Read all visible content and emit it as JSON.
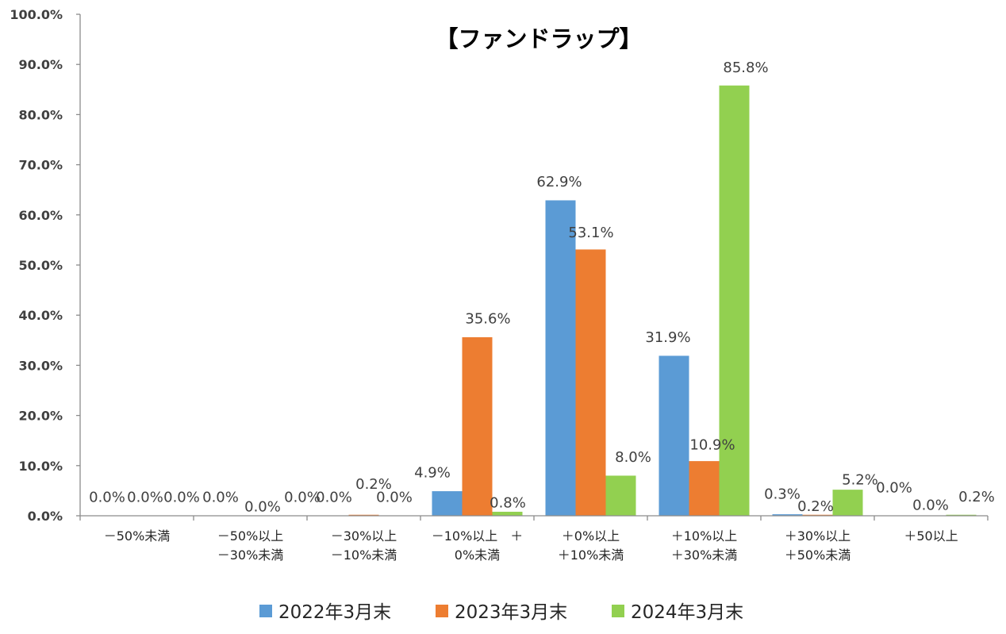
{
  "chart_data": {
    "type": "bar",
    "title": "【ファンドラップ】",
    "xlabel": "",
    "ylabel": "",
    "ylim": [
      0,
      100
    ],
    "grid": false,
    "legend": "bottom",
    "ytick_values": [
      0,
      10,
      20,
      30,
      40,
      50,
      60,
      70,
      80,
      90,
      100
    ],
    "ytick_labels": [
      "0.0%",
      "10.0%",
      "20.0%",
      "30.0%",
      "40.0%",
      "50.0%",
      "60.0%",
      "70.0%",
      "80.0%",
      "90.0%",
      "100.0%"
    ],
    "categories": [
      [
        "－50%未満"
      ],
      [
        "－50%以上",
        "－30%未満"
      ],
      [
        "－30%以上",
        "－10%未満"
      ],
      [
        "－10%以上　＋",
        "0%未満"
      ],
      [
        "＋0%以上",
        "＋10%未満"
      ],
      [
        "＋10%以上",
        "＋30%未満"
      ],
      [
        "＋30%以上",
        "＋50%未満"
      ],
      [
        "＋50以上"
      ]
    ],
    "series": [
      {
        "name": "2022年3月末",
        "color": "#5B9BD5",
        "values": [
          0.0,
          0.0,
          0.0,
          4.9,
          62.9,
          31.9,
          0.3,
          0.0
        ],
        "data_labels": [
          "0.0%",
          "0.0%",
          "0.0%",
          "4.9%",
          "62.9%",
          "31.9%",
          "0.3%",
          "0.0%"
        ]
      },
      {
        "name": "2023年3月末",
        "color": "#ED7D31",
        "values": [
          0.0,
          0.0,
          0.2,
          35.6,
          53.1,
          10.9,
          0.2,
          0.0
        ],
        "data_labels": [
          "0.0%",
          "0.0%",
          "0.2%",
          "35.6%",
          "53.1%",
          "10.9%",
          "0.2%",
          "0.0%"
        ]
      },
      {
        "name": "2024年3月末",
        "color": "#92D050",
        "values": [
          0.0,
          0.0,
          0.0,
          0.8,
          8.0,
          85.8,
          5.2,
          0.2
        ],
        "data_labels": [
          "0.0%",
          "0.0%",
          "0.0%",
          "0.8%",
          "8.0%",
          "85.8%",
          "5.2%",
          "0.2%"
        ]
      }
    ]
  }
}
